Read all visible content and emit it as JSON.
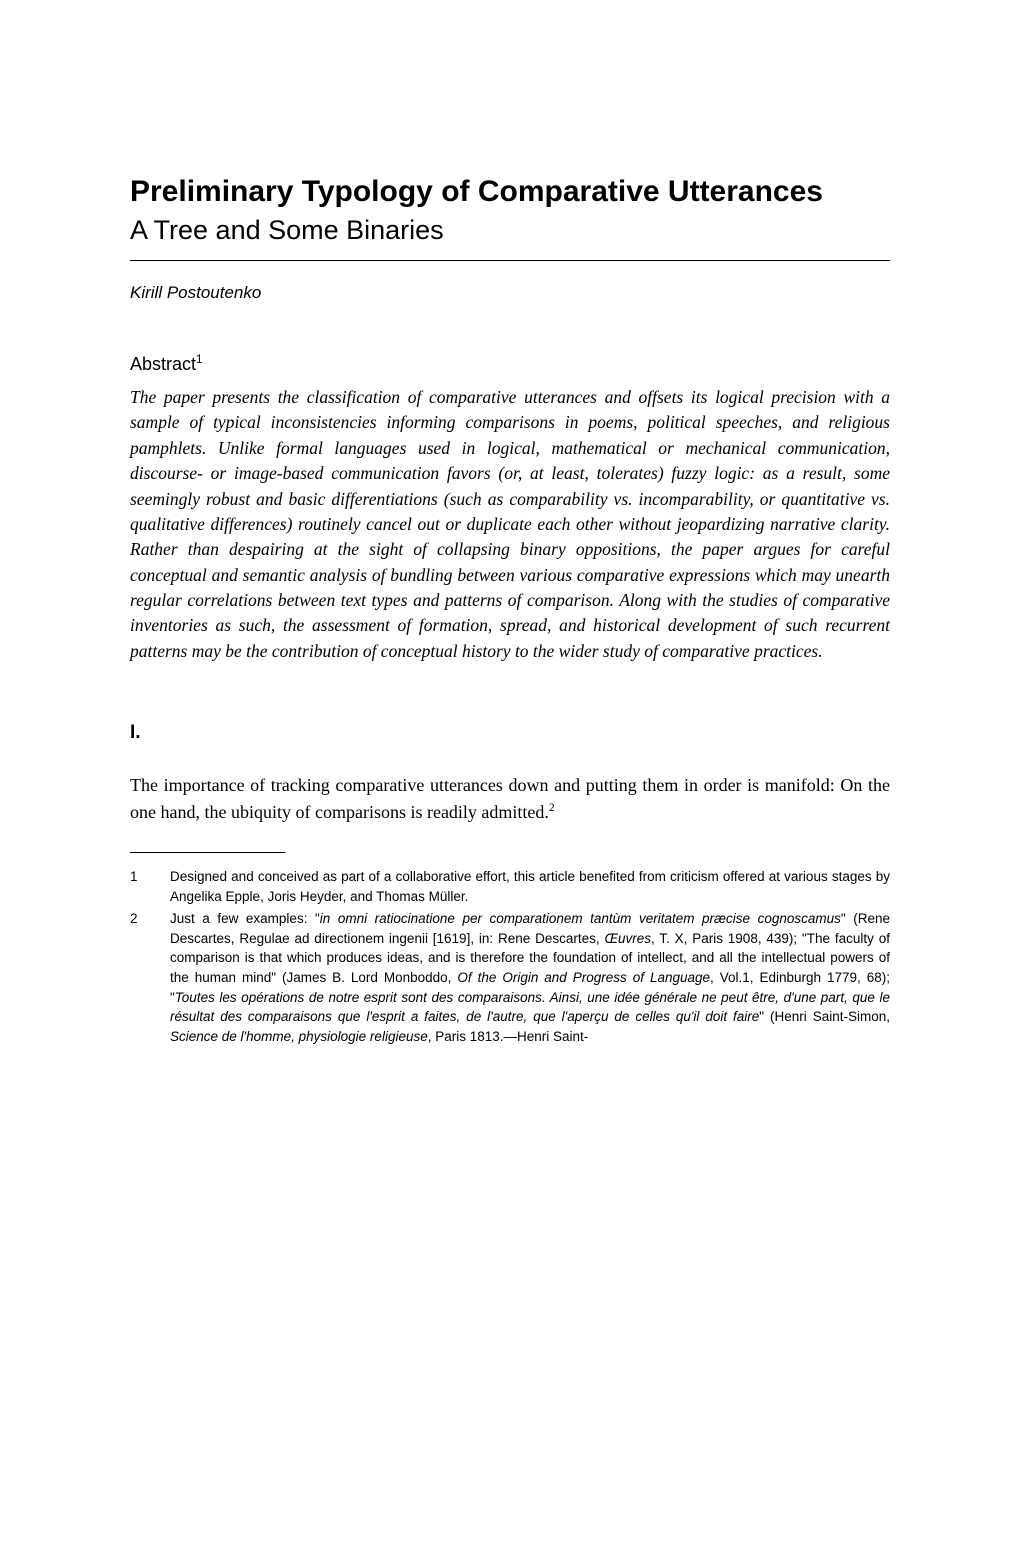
{
  "title": "Preliminary Typology of Comparative Utterances",
  "subtitle": "A Tree and Some Binaries",
  "author": "Kirill Postoutenko",
  "abstract_heading": "Abstract",
  "abstract_sup": "1",
  "abstract_body": "The paper presents the classification of comparative utterances and offsets its logical precision with a sample of typical inconsistencies informing comparisons in poems, political speeches, and religious pamphlets. Unlike formal languages used in logical, mathematical or mechanical communication, discourse- or image-based communication favors (or, at least, tolerates) fuzzy logic: as a result, some seemingly robust and basic differentiations (such as comparability vs. incomparability, or quantitative vs. qualitative differences) routinely cancel out or duplicate each other without jeopardizing narrative clarity. Rather than despairing at the sight of collapsing binary oppositions, the paper argues for careful conceptual and semantic analysis of bundling between various comparative expressions which may unearth regular correlations between text types and patterns of comparison. Along with the studies of comparative inventories as such, the assessment of formation, spread, and historical development of such recurrent patterns may be the contribution of conceptual history to the wider study of comparative practices.",
  "section_number": "I.",
  "body_text": "The importance of tracking comparative utterances down and putting them in order is manifold: On the one hand, the ubiquity of comparisons is readily admitted.",
  "body_sup": "2",
  "footnotes": [
    {
      "num": "1",
      "text": "Designed and conceived as part of a collaborative effort, this article benefited from criticism offered at various stages by Angelika Epple, Joris Heyder, and Thomas Müller."
    },
    {
      "num": "2",
      "text_parts": [
        {
          "t": "Just a few examples: \"",
          "i": false
        },
        {
          "t": "in omni ratiocinatione per comparationem tantùm veritatem præcise cognoscamus",
          "i": true
        },
        {
          "t": "\" (Rene Descartes, Regulae ad directionem ingenii [1619], in: Rene Descartes, ",
          "i": false
        },
        {
          "t": "Œuvres",
          "i": true
        },
        {
          "t": ", T. X, Paris 1908, 439); \"The faculty of comparison is that which produces ideas, and is therefore the foundation of intellect, and all the intellectual powers of the human mind\" (James B. Lord Monboddo, ",
          "i": false
        },
        {
          "t": "Of the Origin and Progress of Language",
          "i": true
        },
        {
          "t": ", Vol.1, Edinburgh 1779, 68); \"",
          "i": false
        },
        {
          "t": "Toutes les opérations de notre esprit sont des comparaisons. Ainsi, une idée générale ne peut être, d'une part, que le résultat des comparaisons que l'esprit a faites, de l'autre, que l'aperçu de celles qu'il doit faire",
          "i": true
        },
        {
          "t": "\" (Henri Saint-Simon, ",
          "i": false
        },
        {
          "t": "Science de l'homme, physiologie religieuse",
          "i": true
        },
        {
          "t": ", Paris 1813.—Henri Saint-",
          "i": false
        }
      ]
    }
  ]
}
